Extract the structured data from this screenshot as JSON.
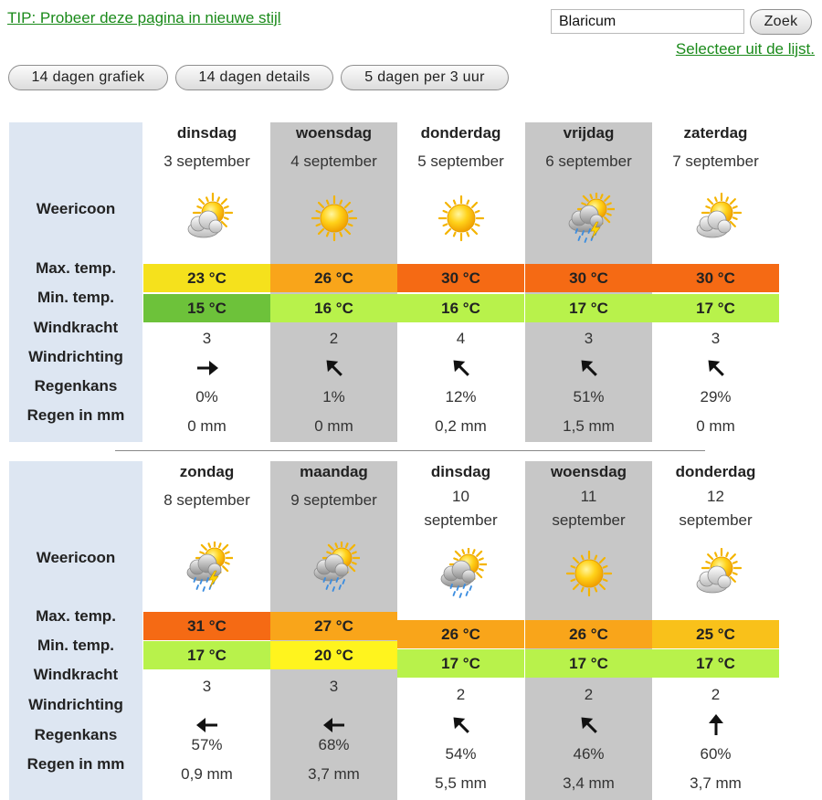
{
  "header": {
    "tip": "TIP: Probeer deze pagina in nieuwe stijl",
    "search_value": "Blaricum",
    "search_button": "Zoek",
    "select_link": "Selecteer uit de lijst."
  },
  "tabs": [
    {
      "label": "14 dagen grafiek"
    },
    {
      "label": "14 dagen details"
    },
    {
      "label": "5 dagen per 3 uur"
    }
  ],
  "row_labels": {
    "icon": "Weericoon",
    "max": "Max. temp.",
    "min": "Min. temp.",
    "wind": "Windkracht",
    "dir": "Windrichting",
    "rainchance": "Regenkans",
    "rainmm": "Regen in mm"
  },
  "weeks": [
    {
      "days": [
        {
          "name": "dinsdag",
          "date_lines": [
            "3 september"
          ],
          "icon": "sun-cloud-icon",
          "max": "23 °C",
          "max_color": "#f5e11c",
          "min": "15 °C",
          "min_color": "#6dc23a",
          "wind": "3",
          "dir": "arrow-east-icon",
          "rain_chance": "0%",
          "rain_mm": "0 mm"
        },
        {
          "name": "woensdag",
          "date_lines": [
            "4 september"
          ],
          "icon": "sun-icon",
          "max": "26 °C",
          "max_color": "#f9a51a",
          "min": "16 °C",
          "min_color": "#b8f24b",
          "wind": "2",
          "dir": "arrow-northwest-icon",
          "rain_chance": "1%",
          "rain_mm": "0 mm"
        },
        {
          "name": "donderdag",
          "date_lines": [
            "5 september"
          ],
          "icon": "sun-icon",
          "max": "30 °C",
          "max_color": "#f56a14",
          "min": "16 °C",
          "min_color": "#b8f24b",
          "wind": "4",
          "dir": "arrow-northwest-icon",
          "rain_chance": "12%",
          "rain_mm": "0,2 mm"
        },
        {
          "name": "vrijdag",
          "date_lines": [
            "6 september"
          ],
          "icon": "thunder-rain-icon",
          "max": "30 °C",
          "max_color": "#f56a14",
          "min": "17 °C",
          "min_color": "#b8f24b",
          "wind": "3",
          "dir": "arrow-northwest-icon",
          "rain_chance": "51%",
          "rain_mm": "1,5 mm"
        },
        {
          "name": "zaterdag",
          "date_lines": [
            "7 september"
          ],
          "icon": "sun-cloud-icon",
          "max": "30 °C",
          "max_color": "#f56a14",
          "min": "17 °C",
          "min_color": "#b8f24b",
          "wind": "3",
          "dir": "arrow-northwest-icon",
          "rain_chance": "29%",
          "rain_mm": "0 mm"
        }
      ]
    },
    {
      "days": [
        {
          "name": "zondag",
          "date_lines": [
            "8 september"
          ],
          "icon": "thunder-rain-icon",
          "max": "31 °C",
          "max_color": "#f56a14",
          "min": "17 °C",
          "min_color": "#b8f24b",
          "wind": "3",
          "dir": "arrow-west-icon",
          "rain_chance": "57%",
          "rain_mm": "0,9 mm"
        },
        {
          "name": "maandag",
          "date_lines": [
            "9 september"
          ],
          "icon": "sun-rain-icon",
          "max": "27 °C",
          "max_color": "#f9a51a",
          "min": "20 °C",
          "min_color": "#fff41e",
          "wind": "3",
          "dir": "arrow-west-icon",
          "rain_chance": "68%",
          "rain_mm": "3,7 mm"
        },
        {
          "name": "dinsdag",
          "date_lines": [
            "10",
            "september"
          ],
          "icon": "sun-rain-icon",
          "max": "26 °C",
          "max_color": "#f9a51a",
          "min": "17 °C",
          "min_color": "#b8f24b",
          "wind": "2",
          "dir": "arrow-northwest-icon",
          "rain_chance": "54%",
          "rain_mm": "5,5 mm"
        },
        {
          "name": "woensdag",
          "date_lines": [
            "11",
            "september"
          ],
          "icon": "sun-icon",
          "max": "26 °C",
          "max_color": "#f9a51a",
          "min": "17 °C",
          "min_color": "#b8f24b",
          "wind": "2",
          "dir": "arrow-northwest-icon",
          "rain_chance": "46%",
          "rain_mm": "3,4 mm"
        },
        {
          "name": "donderdag",
          "date_lines": [
            "12",
            "september"
          ],
          "icon": "sun-cloud-icon",
          "max": "25 °C",
          "max_color": "#f9c11a",
          "min": "17 °C",
          "min_color": "#b8f24b",
          "wind": "2",
          "dir": "arrow-north-icon",
          "rain_chance": "60%",
          "rain_mm": "3,7 mm"
        }
      ]
    }
  ]
}
